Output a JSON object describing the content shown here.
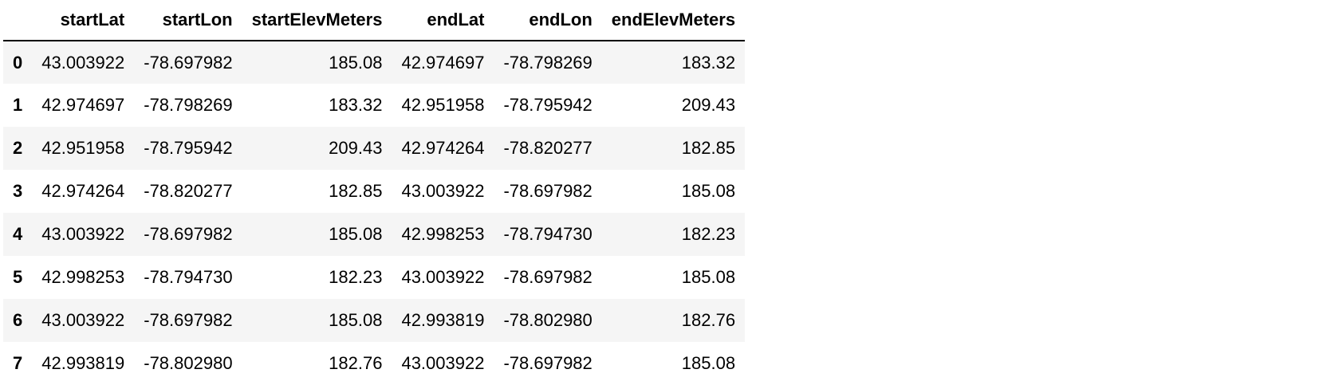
{
  "table": {
    "columns": [
      "",
      "startLat",
      "startLon",
      "startElevMeters",
      "endLat",
      "endLon",
      "endElevMeters"
    ],
    "rows": [
      {
        "index": "0",
        "cells": [
          "43.003922",
          "-78.697982",
          "185.08",
          "42.974697",
          "-78.798269",
          "183.32"
        ]
      },
      {
        "index": "1",
        "cells": [
          "42.974697",
          "-78.798269",
          "183.32",
          "42.951958",
          "-78.795942",
          "209.43"
        ]
      },
      {
        "index": "2",
        "cells": [
          "42.951958",
          "-78.795942",
          "209.43",
          "42.974264",
          "-78.820277",
          "182.85"
        ]
      },
      {
        "index": "3",
        "cells": [
          "42.974264",
          "-78.820277",
          "182.85",
          "43.003922",
          "-78.697982",
          "185.08"
        ]
      },
      {
        "index": "4",
        "cells": [
          "43.003922",
          "-78.697982",
          "185.08",
          "42.998253",
          "-78.794730",
          "182.23"
        ]
      },
      {
        "index": "5",
        "cells": [
          "42.998253",
          "-78.794730",
          "182.23",
          "43.003922",
          "-78.697982",
          "185.08"
        ]
      },
      {
        "index": "6",
        "cells": [
          "43.003922",
          "-78.697982",
          "185.08",
          "42.993819",
          "-78.802980",
          "182.76"
        ]
      },
      {
        "index": "7",
        "cells": [
          "42.993819",
          "-78.802980",
          "182.76",
          "43.003922",
          "-78.697982",
          "185.08"
        ]
      }
    ]
  }
}
